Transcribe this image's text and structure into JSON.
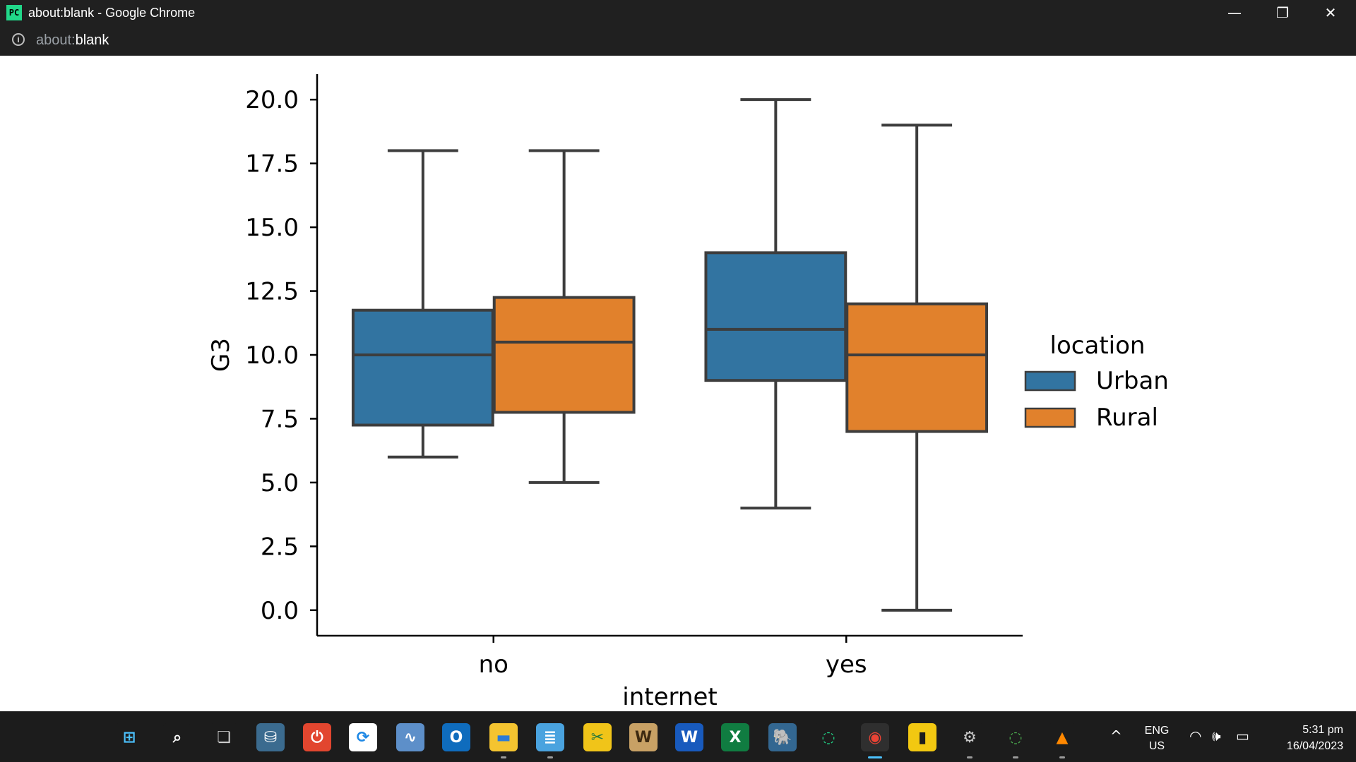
{
  "window": {
    "title": "about:blank - Google Chrome",
    "app_icon_label": "PC",
    "controls": {
      "minimize": "—",
      "restore": "❐",
      "close": "✕"
    }
  },
  "address_bar": {
    "scheme": "about:",
    "host": "blank"
  },
  "chart_data": {
    "type": "box",
    "title": "",
    "xlabel": "internet",
    "ylabel": "G3",
    "categories": [
      "no",
      "yes"
    ],
    "ylim": [
      -1,
      21
    ],
    "yticks": [
      0,
      2.5,
      5,
      7.5,
      10,
      12.5,
      15,
      17.5,
      20
    ],
    "ytick_labels": [
      "0.0",
      "2.5",
      "5.0",
      "7.5",
      "10.0",
      "12.5",
      "15.0",
      "17.5",
      "20.0"
    ],
    "legend": {
      "title": "location",
      "placement": "center-right"
    },
    "grid": false,
    "series": [
      {
        "name": "Urban",
        "color": "#3274a1",
        "boxes": [
          {
            "category": "no",
            "whisker_low": 6,
            "q1": 7.25,
            "median": 10,
            "q3": 11.75,
            "whisker_high": 18
          },
          {
            "category": "yes",
            "whisker_low": 4,
            "q1": 9,
            "median": 11,
            "q3": 14,
            "whisker_high": 20
          }
        ]
      },
      {
        "name": "Rural",
        "color": "#e1812c",
        "boxes": [
          {
            "category": "no",
            "whisker_low": 5,
            "q1": 7.75,
            "median": 10.5,
            "q3": 12.25,
            "whisker_high": 18
          },
          {
            "category": "yes",
            "whisker_low": 0,
            "q1": 7,
            "median": 10,
            "q3": 12,
            "whisker_high": 19
          }
        ]
      }
    ]
  },
  "taskbar": {
    "apps": [
      {
        "name": "start-icon",
        "glyph": "⊞",
        "bg": "#1c1c1c",
        "fg": "#4cc2ff"
      },
      {
        "name": "search-icon",
        "glyph": "⌕",
        "bg": "#1c1c1c",
        "fg": "#ffffff"
      },
      {
        "name": "task-view-icon",
        "glyph": "❏",
        "bg": "#1c1c1c",
        "fg": "#d0d0d0"
      },
      {
        "name": "mysql-workbench-icon",
        "glyph": "⛁",
        "bg": "#3b6b8f",
        "fg": "#ffffff"
      },
      {
        "name": "power-app-icon",
        "glyph": "⏻",
        "bg": "#e2462f",
        "fg": "#ffffff"
      },
      {
        "name": "sync-app-icon",
        "glyph": "⟳",
        "bg": "#ffffff",
        "fg": "#1e88e5"
      },
      {
        "name": "resource-monitor-icon",
        "glyph": "∿",
        "bg": "#5d8fc9",
        "fg": "#ffffff"
      },
      {
        "name": "outlook-icon",
        "glyph": "O",
        "bg": "#0f6cbd",
        "fg": "#ffffff"
      },
      {
        "name": "file-explorer-icon",
        "glyph": "▬",
        "bg": "#f4c430",
        "fg": "#2b7bd6"
      },
      {
        "name": "notepad-icon",
        "glyph": "≣",
        "bg": "#4aa3df",
        "fg": "#ffffff"
      },
      {
        "name": "sticky-tools-icon",
        "glyph": "✂",
        "bg": "#f0c419",
        "fg": "#2a7a3b"
      },
      {
        "name": "word-doc-icon",
        "glyph": "W",
        "bg": "#c8a165",
        "fg": "#3d2a12"
      },
      {
        "name": "word-icon",
        "glyph": "W",
        "bg": "#185abd",
        "fg": "#ffffff"
      },
      {
        "name": "excel-icon",
        "glyph": "X",
        "bg": "#107c41",
        "fg": "#ffffff"
      },
      {
        "name": "postgresql-icon",
        "glyph": "🐘",
        "bg": "#336791",
        "fg": "#ffffff"
      },
      {
        "name": "pycharm-ring-icon",
        "glyph": "◌",
        "bg": "#1c1c1c",
        "fg": "#21d789"
      },
      {
        "name": "chrome-icon",
        "glyph": "◉",
        "bg": "#2f2f2f",
        "fg": "#ea4335"
      },
      {
        "name": "power-bi-icon",
        "glyph": "▮",
        "bg": "#f2c811",
        "fg": "#1c1c1c"
      },
      {
        "name": "settings-icon",
        "glyph": "⚙",
        "bg": "#1c1c1c",
        "fg": "#c8c8c8"
      },
      {
        "name": "jupyter-ring-icon",
        "glyph": "◌",
        "bg": "#1c1c1c",
        "fg": "#4caf50"
      },
      {
        "name": "vlc-icon",
        "glyph": "▲",
        "bg": "#1c1c1c",
        "fg": "#ff8800"
      }
    ],
    "tray": {
      "chevron": "^",
      "lang_line1": "ENG",
      "lang_line2": "US",
      "wifi": "◠",
      "volume": "🕪",
      "battery": "▭",
      "time": "5:31 pm",
      "date": "16/04/2023"
    }
  }
}
